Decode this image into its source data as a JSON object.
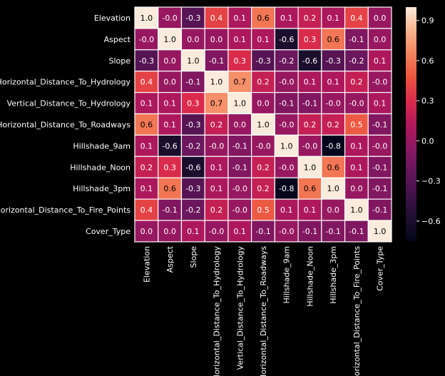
{
  "chart_data": {
    "type": "heatmap",
    "title": "",
    "rows": [
      "Elevation",
      "Aspect",
      "Slope",
      "Horizontal_Distance_To_Hydrology",
      "Vertical_Distance_To_Hydrology",
      "Horizontal_Distance_To_Roadways",
      "Hillshade_9am",
      "Hillshade_Noon",
      "Hillshade_3pm",
      "Horizontal_Distance_To_Fire_Points",
      "Cover_Type"
    ],
    "columns": [
      "Elevation",
      "Aspect",
      "Slope",
      "Horizontal_Distance_To_Hydrology",
      "Vertical_Distance_To_Hydrology",
      "Horizontal_Distance_To_Roadways",
      "Hillshade_9am",
      "Hillshade_Noon",
      "Hillshade_3pm",
      "Horizontal_Distance_To_Fire_Points",
      "Cover_Type"
    ],
    "values": [
      [
        1.0,
        -0.0,
        -0.3,
        0.4,
        0.1,
        0.6,
        0.1,
        0.2,
        0.1,
        0.4,
        0.0
      ],
      [
        -0.0,
        1.0,
        0.0,
        0.0,
        0.1,
        0.1,
        -0.6,
        0.3,
        0.6,
        -0.1,
        0.0
      ],
      [
        -0.3,
        0.0,
        1.0,
        -0.1,
        0.3,
        -0.3,
        -0.2,
        -0.6,
        -0.3,
        -0.2,
        0.1
      ],
      [
        0.4,
        0.0,
        -0.1,
        1.0,
        0.7,
        0.2,
        -0.0,
        0.1,
        0.1,
        0.2,
        -0.0
      ],
      [
        0.1,
        0.1,
        0.3,
        0.7,
        1.0,
        0.0,
        -0.1,
        -0.1,
        -0.0,
        -0.0,
        0.1
      ],
      [
        0.6,
        0.1,
        -0.3,
        0.2,
        0.0,
        1.0,
        -0.0,
        0.2,
        0.2,
        0.5,
        -0.1
      ],
      [
        0.1,
        -0.6,
        -0.2,
        -0.0,
        -0.1,
        -0.0,
        1.0,
        -0.0,
        -0.8,
        0.1,
        -0.0
      ],
      [
        0.2,
        0.3,
        -0.6,
        0.1,
        -0.1,
        0.2,
        -0.0,
        1.0,
        0.6,
        0.1,
        -0.1
      ],
      [
        0.1,
        0.6,
        -0.3,
        0.1,
        -0.0,
        0.2,
        -0.8,
        0.6,
        1.0,
        0.0,
        -0.1
      ],
      [
        0.4,
        -0.1,
        -0.2,
        0.2,
        -0.0,
        0.5,
        0.1,
        0.1,
        0.0,
        1.0,
        -0.1
      ],
      [
        0.0,
        0.0,
        0.1,
        -0.0,
        0.1,
        -0.1,
        -0.0,
        -0.1,
        -0.1,
        -0.1,
        1.0
      ]
    ],
    "value_range": [
      -0.75,
      1.0
    ],
    "colorbar_ticks": [
      0.9,
      0.6,
      0.3,
      0.0,
      -0.3,
      -0.6
    ],
    "colorbar_tick_labels": [
      "0.9",
      "0.6",
      "0.3",
      "0.0",
      "−0.3",
      "−0.6"
    ],
    "colormap": "rocket",
    "background": "#000000",
    "text_color": "#ffffff",
    "cell_border_color": "#ffffff",
    "annotation_dark_text": "#000000",
    "annotation_light_text": "#ffffff"
  }
}
